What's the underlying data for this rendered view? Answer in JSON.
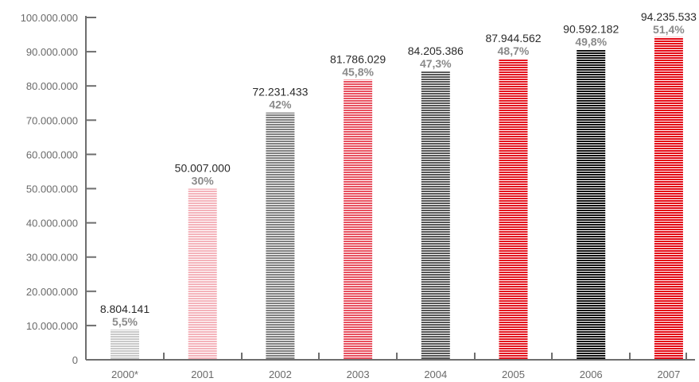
{
  "chart_data": {
    "type": "bar",
    "title": "",
    "xlabel": "",
    "ylabel": "",
    "categories": [
      "2000*",
      "2001",
      "2002",
      "2003",
      "2004",
      "2005",
      "2006",
      "2007"
    ],
    "values": [
      8804141,
      50007000,
      72231433,
      81786029,
      84205386,
      87944562,
      90592182,
      94235533
    ],
    "value_labels": [
      "8.804.141",
      "50.007.000",
      "72.231.433",
      "81.786.029",
      "84.205.386",
      "87.944.562",
      "90.592.182",
      "94.235.533"
    ],
    "percent_labels": [
      "5,5%",
      "30%",
      "42%",
      "45,8%",
      "47,3%",
      "48,7%",
      "49,8%",
      "51,4%"
    ],
    "ylim": [
      0,
      100000000
    ],
    "yticks": [
      0,
      10000000,
      20000000,
      30000000,
      40000000,
      50000000,
      60000000,
      70000000,
      80000000,
      90000000,
      100000000
    ],
    "ytick_labels": [
      "0",
      "10.000.000",
      "20.000.000",
      "30.000.000",
      "40.000.000",
      "50.000.000",
      "60.000.000",
      "70.000.000",
      "80.000.000",
      "90.000.000",
      "100.000.000"
    ],
    "bar_colors": [
      "#c9c9c9",
      "#f4b3bb",
      "#7f7f7f",
      "#e8505f",
      "#555555",
      "#e3141f",
      "#111111",
      "#e30613"
    ],
    "grid": false,
    "legend": false,
    "axis_color": "#6e6e6e"
  }
}
